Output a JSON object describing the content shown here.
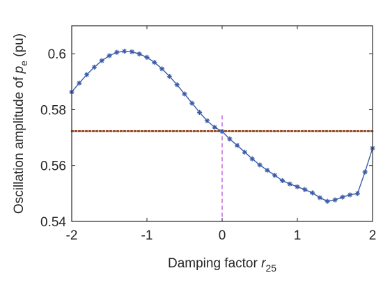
{
  "chart_data": {
    "type": "line",
    "title": "",
    "xlabel": {
      "text": "Damping factor ",
      "symbol": "r",
      "subscript": "25"
    },
    "ylabel": {
      "text": "Oscillation amplitude of ",
      "symbol": "p",
      "subscript": "e",
      "unit": " (pu)"
    },
    "xlim": [
      -2,
      2
    ],
    "ylim": [
      0.54,
      0.61
    ],
    "xticks": [
      -2,
      -1,
      0,
      1,
      2
    ],
    "xtick_labels": [
      "-2",
      "-1",
      "0",
      "1",
      "2"
    ],
    "yticks": [
      0.54,
      0.56,
      0.58,
      0.6
    ],
    "ytick_labels": [
      "0.54",
      "0.56",
      "0.58",
      "0.6"
    ],
    "grid": false,
    "series": [
      {
        "color": "#3A5BA8",
        "marker": "asterisk",
        "x": [
          -2.0,
          -1.9,
          -1.8,
          -1.7,
          -1.6,
          -1.5,
          -1.4,
          -1.3,
          -1.2,
          -1.1,
          -1.0,
          -0.9,
          -0.8,
          -0.7,
          -0.6,
          -0.5,
          -0.4,
          -0.3,
          -0.2,
          -0.1,
          0.0,
          0.1,
          0.2,
          0.3,
          0.4,
          0.5,
          0.6,
          0.7,
          0.8,
          0.9,
          1.0,
          1.1,
          1.2,
          1.3,
          1.4,
          1.5,
          1.6,
          1.7,
          1.8,
          1.9,
          2.0
        ],
        "y": [
          0.5863,
          0.5895,
          0.5925,
          0.5952,
          0.5975,
          0.5993,
          0.6005,
          0.6009,
          0.6007,
          0.5999,
          0.5987,
          0.5969,
          0.5946,
          0.5919,
          0.5889,
          0.5856,
          0.5823,
          0.579,
          0.576,
          0.5737,
          0.5722,
          0.5695,
          0.5672,
          0.5648,
          0.5624,
          0.5602,
          0.5583,
          0.5565,
          0.5546,
          0.5534,
          0.5524,
          0.5514,
          0.5502,
          0.5485,
          0.5472,
          0.5477,
          0.5487,
          0.5495,
          0.55,
          0.5577,
          0.5662
        ]
      }
    ],
    "reference_lines": [
      {
        "orientation": "horizontal",
        "value": 0.5723,
        "color": "#8B3A0F",
        "style": "dotted"
      },
      {
        "orientation": "vertical",
        "value": 0,
        "color": "#B040E0",
        "style": "dashed"
      }
    ]
  }
}
